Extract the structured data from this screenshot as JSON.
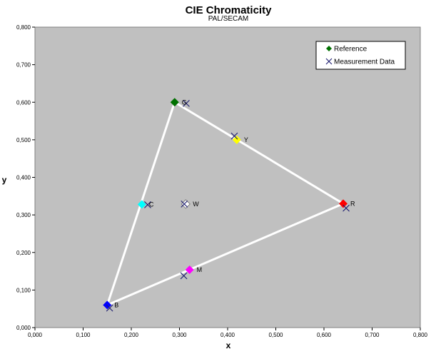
{
  "chart_data": {
    "type": "scatter",
    "title": "CIE Chromaticity",
    "subtitle": "PAL/SECAM",
    "xlabel": "x",
    "ylabel": "y",
    "xlim": [
      0,
      0.8
    ],
    "ylim": [
      0,
      0.8
    ],
    "x_ticks": [
      "0,000",
      "0,100",
      "0,200",
      "0,300",
      "0,400",
      "0,500",
      "0,600",
      "0,700",
      "0,800"
    ],
    "y_ticks": [
      "0,000",
      "0,100",
      "0,200",
      "0,300",
      "0,400",
      "0,500",
      "0,600",
      "0,700",
      "0,800"
    ],
    "plot_background": "#c0c0c0",
    "grid": false,
    "legend_position": "top-right",
    "series": [
      {
        "name": "Reference",
        "marker": "diamond",
        "points": [
          {
            "label": "G",
            "x": 0.29,
            "y": 0.6,
            "color": "#007000"
          },
          {
            "label": "Y",
            "x": 0.419,
            "y": 0.5,
            "color": "#ffff00"
          },
          {
            "label": "R",
            "x": 0.64,
            "y": 0.33,
            "color": "#ff0000"
          },
          {
            "label": "C",
            "x": 0.222,
            "y": 0.328,
            "color": "#00ffff"
          },
          {
            "label": "W",
            "x": 0.313,
            "y": 0.329,
            "color": "#ffffff"
          },
          {
            "label": "M",
            "x": 0.321,
            "y": 0.154,
            "color": "#ff00ff"
          },
          {
            "label": "B",
            "x": 0.15,
            "y": 0.06,
            "color": "#0000ff"
          }
        ]
      },
      {
        "name": "Measurement Data",
        "marker": "x",
        "color": "#1a1a6e",
        "points": [
          {
            "label": "G",
            "x": 0.314,
            "y": 0.597
          },
          {
            "label": "Y",
            "x": 0.414,
            "y": 0.51
          },
          {
            "label": "R",
            "x": 0.646,
            "y": 0.318
          },
          {
            "label": "C",
            "x": 0.234,
            "y": 0.327
          },
          {
            "label": "W",
            "x": 0.31,
            "y": 0.329
          },
          {
            "label": "M",
            "x": 0.309,
            "y": 0.138
          },
          {
            "label": "B",
            "x": 0.155,
            "y": 0.052
          }
        ]
      }
    ],
    "gamut_outline": {
      "color": "#ffffff",
      "path": [
        "R",
        "G",
        "B",
        "R"
      ]
    },
    "legend": [
      {
        "label": "Reference",
        "marker": "diamond",
        "color": "#007000"
      },
      {
        "label": "Measurement Data",
        "marker": "x",
        "color": "#1a1a6e"
      }
    ]
  }
}
